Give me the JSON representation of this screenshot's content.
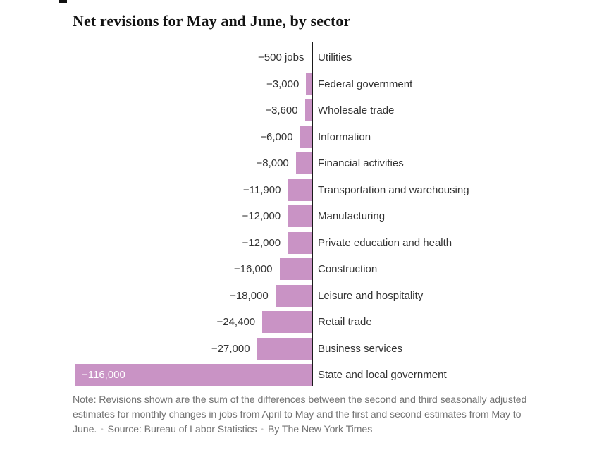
{
  "title": "Net revisions for May and June, by sector",
  "chart_data": {
    "type": "bar",
    "orientation": "horizontal",
    "unit": "jobs",
    "baseline": 0,
    "x_max_abs": 116000,
    "bar_color": "#c993c5",
    "axis_color": "#1a1a1a",
    "value_label_color": "#333333",
    "inside_label_color": "#ffffff",
    "rows": [
      {
        "value": -500,
        "value_label": "−500 jobs",
        "sector": "Utilities"
      },
      {
        "value": -3000,
        "value_label": "−3,000",
        "sector": "Federal government"
      },
      {
        "value": -3600,
        "value_label": "−3,600",
        "sector": "Wholesale trade"
      },
      {
        "value": -6000,
        "value_label": "−6,000",
        "sector": "Information"
      },
      {
        "value": -8000,
        "value_label": "−8,000",
        "sector": "Financial activities"
      },
      {
        "value": -11900,
        "value_label": "−11,900",
        "sector": "Transportation and warehousing"
      },
      {
        "value": -12000,
        "value_label": "−12,000",
        "sector": "Manufacturing"
      },
      {
        "value": -12000,
        "value_label": "−12,000",
        "sector": "Private education and health"
      },
      {
        "value": -16000,
        "value_label": "−16,000",
        "sector": "Construction"
      },
      {
        "value": -18000,
        "value_label": "−18,000",
        "sector": "Leisure and hospitality"
      },
      {
        "value": -24400,
        "value_label": "−24,400",
        "sector": "Retail trade"
      },
      {
        "value": -27000,
        "value_label": "−27,000",
        "sector": "Business services"
      },
      {
        "value": -116000,
        "value_label": "−116,000",
        "sector": "State and local government",
        "label_inside": true
      }
    ]
  },
  "note": {
    "text": "Note: Revisions shown are the sum of the differences between the second and third seasonally adjusted estimates for monthly changes in jobs from April to May and the first and second estimates from May to June.",
    "separator": "•",
    "source": "Source: Bureau of Labor Statistics",
    "byline": "By The New York Times"
  }
}
